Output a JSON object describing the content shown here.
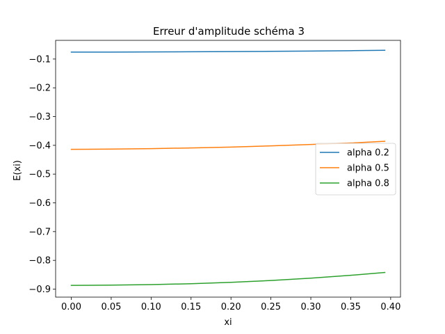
{
  "chart_data": {
    "type": "line",
    "title": "Erreur d'amplitude schéma 3",
    "xlabel": "xi",
    "ylabel": "E(xi)",
    "xlim": [
      -0.0196,
      0.4123
    ],
    "ylim": [
      -0.9278,
      -0.035
    ],
    "xticks": [
      0.0,
      0.05,
      0.1,
      0.15,
      0.2,
      0.25,
      0.3,
      0.35,
      0.4
    ],
    "xtick_labels": [
      "0.00",
      "0.05",
      "0.10",
      "0.15",
      "0.20",
      "0.25",
      "0.30",
      "0.35",
      "0.40"
    ],
    "yticks": [
      -0.1,
      -0.2,
      -0.3,
      -0.4,
      -0.5,
      -0.6,
      -0.7,
      -0.8,
      -0.9
    ],
    "ytick_labels": [
      "−0.1",
      "−0.2",
      "−0.3",
      "−0.4",
      "−0.5",
      "−0.6",
      "−0.7",
      "−0.8",
      "−0.9"
    ],
    "grid": false,
    "legend_position": "center-right",
    "x": [
      0.0,
      0.05,
      0.1,
      0.15,
      0.2,
      0.25,
      0.3,
      0.35,
      0.3927
    ],
    "series": [
      {
        "name": "alpha 0.2",
        "color": "#1f77b4",
        "values": [
          -0.0759,
          -0.0757,
          -0.0753,
          -0.0747,
          -0.074,
          -0.0732,
          -0.0721,
          -0.0709,
          -0.0696
        ]
      },
      {
        "name": "alpha 0.5",
        "color": "#ff7f0e",
        "values": [
          -0.414,
          -0.4132,
          -0.4115,
          -0.409,
          -0.406,
          -0.402,
          -0.397,
          -0.392,
          -0.386
        ]
      },
      {
        "name": "alpha 0.8",
        "color": "#2ca02c",
        "values": [
          -0.887,
          -0.8862,
          -0.8842,
          -0.8812,
          -0.8765,
          -0.87,
          -0.862,
          -0.852,
          -0.842
        ]
      }
    ]
  }
}
